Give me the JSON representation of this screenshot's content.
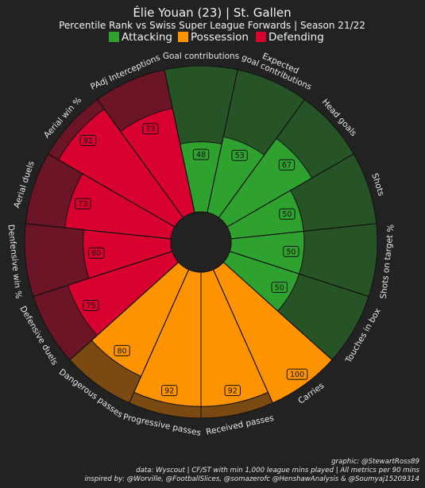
{
  "header": {
    "title": "Élie Youan (23) | St. Gallen",
    "subtitle": "Percentile Rank vs Swiss Super League Forwards | Season 21/22"
  },
  "legend": [
    {
      "label": "Attacking",
      "color": "#2ea12e"
    },
    {
      "label": "Possession",
      "color": "#ff9300"
    },
    {
      "label": "Defending",
      "color": "#d7002f"
    }
  ],
  "chart_data": {
    "type": "polar-bar",
    "title": "Élie Youan (23) | St. Gallen",
    "subtitle": "Percentile Rank vs Swiss Super League Forwards | Season 21/22",
    "rlim": [
      0,
      100
    ],
    "categories": [
      "Goal contributions",
      "Expected goal contributions",
      "Head goals",
      "Shots",
      "Shots on target %",
      "Touches in box",
      "Carries",
      "Received passes",
      "Progressive passes",
      "Dangerous passes",
      "Defensive duels",
      "Denfensive win %",
      "Aerial duels",
      "Aerial win %",
      "PAdj Interceptions"
    ],
    "values": [
      48,
      53,
      67,
      50,
      50,
      50,
      100,
      92,
      92,
      80,
      75,
      60,
      73,
      92,
      73
    ],
    "groups": [
      "Attacking",
      "Attacking",
      "Attacking",
      "Attacking",
      "Attacking",
      "Attacking",
      "Possession",
      "Possession",
      "Possession",
      "Possession",
      "Defending",
      "Defending",
      "Defending",
      "Defending",
      "Defending"
    ],
    "group_colors": {
      "Attacking": {
        "bar": "#2ea12e",
        "background": "#265426"
      },
      "Possession": {
        "bar": "#ff9300",
        "background": "#7b4a12"
      },
      "Defending": {
        "bar": "#d7002f",
        "background": "#6c1527"
      }
    }
  },
  "credits": [
    "graphic: @StewartRoss89",
    "data: Wyscout | CF/ST with min 1,000 league mins played | All metrics per 90 mins",
    "inspired by: @Worville, @FootballSlices, @somazerofc @HenshawAnalysis & @Soumyaj15209314"
  ]
}
